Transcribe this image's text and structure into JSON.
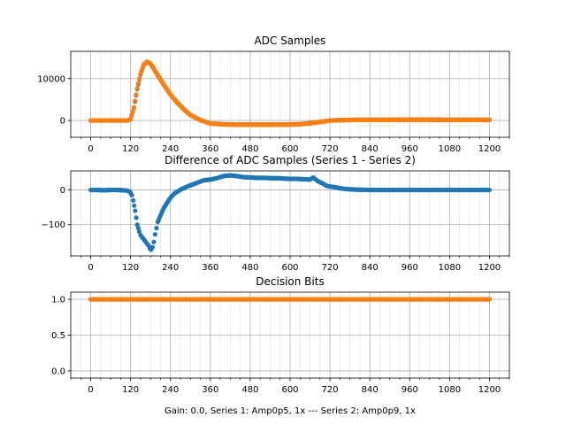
{
  "figure": {
    "caption": "Gain: 0.0, Series 1: Amp0p5, 1x --- Series 2: Amp0p9, 1x"
  },
  "colors": {
    "series1": "#1f77b4",
    "series2": "#ff7f0e",
    "grid": "#b0b0b0",
    "minor_grid": "#dedede"
  },
  "chart_data": [
    {
      "type": "scatter",
      "title": "ADC Samples",
      "xlim": [
        -60,
        1260
      ],
      "ylim": [
        -4000,
        16500
      ],
      "x_ticks": [
        0,
        120,
        240,
        360,
        480,
        600,
        720,
        840,
        960,
        1080,
        1200
      ],
      "y_ticks": [
        0,
        10000
      ],
      "x_minor_step": 30,
      "grid": true,
      "series": [
        {
          "color": "#1f77b4",
          "x": [
            0,
            60,
            110,
            120,
            130,
            140,
            150,
            160,
            170,
            180,
            190,
            200,
            220,
            240,
            260,
            280,
            300,
            330,
            360,
            400,
            440,
            480,
            520,
            560,
            600,
            620,
            640,
            660,
            680,
            700,
            720,
            760,
            800,
            840,
            880,
            920,
            960,
            1000,
            1080,
            1200
          ],
          "y": [
            0,
            0,
            0,
            300,
            3000,
            7500,
            11000,
            13300,
            14000,
            13500,
            12300,
            11000,
            8500,
            6200,
            4300,
            2700,
            1300,
            100,
            -700,
            -900,
            -950,
            -950,
            -950,
            -950,
            -950,
            -900,
            -800,
            -650,
            -450,
            -250,
            0,
            100,
            150,
            150,
            150,
            150,
            200,
            200,
            150,
            150
          ]
        },
        {
          "color": "#ff7f0e",
          "x": [
            0,
            60,
            110,
            120,
            130,
            140,
            150,
            160,
            170,
            180,
            190,
            200,
            220,
            240,
            260,
            280,
            300,
            330,
            360,
            400,
            440,
            480,
            520,
            560,
            600,
            620,
            640,
            660,
            680,
            700,
            720,
            760,
            800,
            840,
            880,
            920,
            960,
            1000,
            1080,
            1200
          ],
          "y": [
            0,
            0,
            0,
            300,
            3150,
            7700,
            11150,
            13400,
            14060,
            13550,
            12350,
            11050,
            8550,
            6230,
            4320,
            2700,
            1290,
            80,
            -730,
            -940,
            -985,
            -990,
            -985,
            -985,
            -980,
            -930,
            -830,
            -675,
            -480,
            -270,
            -10,
            95,
            145,
            145,
            150,
            150,
            205,
            200,
            150,
            150
          ]
        }
      ]
    },
    {
      "type": "scatter",
      "title": "Difference of ADC Samples (Series 1 - Series 2)",
      "xlim": [
        -60,
        1260
      ],
      "ylim": [
        -190,
        55
      ],
      "x_ticks": [
        0,
        120,
        240,
        360,
        480,
        600,
        720,
        840,
        960,
        1080,
        1200
      ],
      "y_ticks": [
        -100,
        0
      ],
      "x_minor_step": 30,
      "grid": true,
      "series": [
        {
          "color": "#1f77b4",
          "x": [
            0,
            20,
            40,
            60,
            80,
            100,
            110,
            118,
            124,
            128,
            134,
            140,
            146,
            150,
            154,
            158,
            162,
            166,
            170,
            174,
            178,
            182,
            186,
            190,
            194,
            198,
            202,
            208,
            214,
            220,
            228,
            236,
            244,
            252,
            262,
            272,
            284,
            296,
            310,
            324,
            340,
            360,
            380,
            400,
            420,
            440,
            460,
            480,
            500,
            520,
            540,
            560,
            580,
            600,
            620,
            640,
            660,
            670,
            680,
            690,
            700,
            710,
            720,
            735,
            750,
            765,
            780,
            800,
            840,
            880,
            920,
            960,
            1000,
            1040,
            1080,
            1120,
            1160,
            1200
          ],
          "y": [
            0,
            0,
            -1,
            0,
            0,
            -1,
            -2,
            -5,
            -15,
            -30,
            -60,
            -100,
            -120,
            -130,
            -135,
            -140,
            -145,
            -150,
            -155,
            -160,
            -168,
            -172,
            -165,
            -150,
            -128,
            -110,
            -92,
            -78,
            -65,
            -52,
            -40,
            -28,
            -18,
            -10,
            -4,
            2,
            7,
            12,
            17,
            22,
            28,
            30,
            34,
            40,
            42,
            40,
            37,
            36,
            35,
            35,
            34,
            34,
            33,
            32,
            32,
            31,
            30,
            36,
            28,
            22,
            18,
            12,
            10,
            8,
            5,
            3,
            2,
            1,
            0,
            0,
            0,
            0,
            0,
            0,
            0,
            0,
            0,
            0
          ]
        }
      ]
    },
    {
      "type": "scatter",
      "title": "Decision Bits",
      "xlim": [
        -60,
        1260
      ],
      "ylim": [
        -0.1,
        1.1
      ],
      "x_ticks": [
        0,
        120,
        240,
        360,
        480,
        600,
        720,
        840,
        960,
        1080,
        1200
      ],
      "y_ticks": [
        0.0,
        0.5,
        1.0
      ],
      "y_tick_labels": [
        "0.0",
        "0.5",
        "1.0"
      ],
      "x_minor_step": 30,
      "grid": true,
      "series": [
        {
          "color": "#1f77b4",
          "x": [
            0,
            1200
          ],
          "y": [
            1.0,
            1.0
          ]
        },
        {
          "color": "#ff7f0e",
          "x": [
            0,
            1200
          ],
          "y": [
            1.0,
            1.0
          ]
        }
      ]
    }
  ]
}
